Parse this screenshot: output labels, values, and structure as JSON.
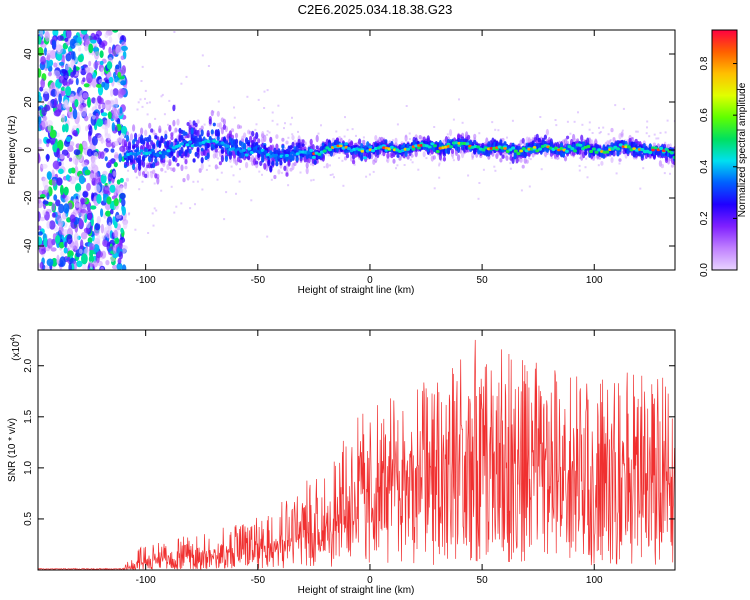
{
  "chart_data": [
    {
      "type": "heatmap",
      "title": "C2E6.2025.034.18.38.G23",
      "xlabel": "Height of straight line (km)",
      "ylabel": "Frequency (Hz)",
      "xlim": [
        -148,
        136
      ],
      "ylim": [
        -50,
        50
      ],
      "xticks": [
        -100,
        -50,
        0,
        50,
        100
      ],
      "yticks": [
        -40,
        -20,
        0,
        20,
        40
      ],
      "grid": false,
      "colorbar": {
        "label": "Normalized spectral amplitude",
        "range": [
          0.0,
          0.93
        ],
        "ticks": [
          0.0,
          0.2,
          0.4,
          0.6,
          0.8
        ],
        "colormap": [
          "#e8d4ff",
          "#c080ff",
          "#8020ff",
          "#2000ff",
          "#0060ff",
          "#00e0f0",
          "#00e060",
          "#60ff00",
          "#e0ff00",
          "#ffc000",
          "#ff6000",
          "#ff0040"
        ]
      },
      "noise_region_x": [
        -148,
        -109
      ],
      "signal_band": {
        "center_freq": [
          {
            "x": -108,
            "f": -2
          },
          {
            "x": -90,
            "f": 0
          },
          {
            "x": -80,
            "f": 3
          },
          {
            "x": -70,
            "f": 3
          },
          {
            "x": -60,
            "f": 1
          },
          {
            "x": -45,
            "f": -2
          },
          {
            "x": -35,
            "f": -2
          },
          {
            "x": -25,
            "f": -1
          },
          {
            "x": -15,
            "f": 1
          },
          {
            "x": 0,
            "f": 0
          },
          {
            "x": 20,
            "f": 1
          },
          {
            "x": 40,
            "f": 2
          },
          {
            "x": 60,
            "f": 0
          },
          {
            "x": 80,
            "f": 1
          },
          {
            "x": 100,
            "f": 0
          },
          {
            "x": 120,
            "f": 1
          },
          {
            "x": 136,
            "f": -2
          }
        ],
        "half_width_hz": [
          {
            "x": -108,
            "w": 11
          },
          {
            "x": -80,
            "w": 12
          },
          {
            "x": -60,
            "w": 9
          },
          {
            "x": -40,
            "w": 7
          },
          {
            "x": -20,
            "w": 5
          },
          {
            "x": 0,
            "w": 4
          },
          {
            "x": 50,
            "w": 4
          },
          {
            "x": 100,
            "w": 4
          },
          {
            "x": 136,
            "w": 4
          }
        ]
      }
    },
    {
      "type": "line",
      "xlabel": "Height of straight line (km)",
      "ylabel": "SNR (10 * v/v)",
      "y_multiplier": "(x10",
      "y_multiplier_exp": "4",
      "multiplier_close": ")",
      "xlim": [
        -148,
        136
      ],
      "ylim": [
        0,
        2.35
      ],
      "xticks": [
        -100,
        -50,
        0,
        50,
        100
      ],
      "yticks": [
        0.5,
        1.0,
        1.5,
        2.0
      ],
      "ytick_labels": [
        "0.5",
        "1.0",
        "1.5",
        "2.0"
      ],
      "grid": false,
      "series": [
        {
          "color": "#f03030",
          "envelope": [
            {
              "x": -148,
              "mean": 0.01,
              "max": 0.02
            },
            {
              "x": -110,
              "mean": 0.01,
              "max": 0.03
            },
            {
              "x": -103,
              "mean": 0.07,
              "max": 0.22
            },
            {
              "x": -90,
              "mean": 0.12,
              "max": 0.3
            },
            {
              "x": -75,
              "mean": 0.14,
              "max": 0.36
            },
            {
              "x": -60,
              "mean": 0.18,
              "max": 0.45
            },
            {
              "x": -50,
              "mean": 0.23,
              "max": 0.6
            },
            {
              "x": -40,
              "mean": 0.3,
              "max": 0.75
            },
            {
              "x": -30,
              "mean": 0.36,
              "max": 0.9
            },
            {
              "x": -22,
              "mean": 0.36,
              "max": 0.9
            },
            {
              "x": -15,
              "mean": 0.52,
              "max": 1.2
            },
            {
              "x": -5,
              "mean": 0.72,
              "max": 1.55
            },
            {
              "x": 5,
              "mean": 0.82,
              "max": 1.65
            },
            {
              "x": 20,
              "mean": 0.95,
              "max": 1.8
            },
            {
              "x": 35,
              "mean": 1.05,
              "max": 2.2
            },
            {
              "x": 50,
              "mean": 1.05,
              "max": 2.3
            },
            {
              "x": 65,
              "mean": 1.0,
              "max": 2.1
            },
            {
              "x": 80,
              "mean": 1.0,
              "max": 2.0
            },
            {
              "x": 100,
              "mean": 0.95,
              "max": 1.9
            },
            {
              "x": 120,
              "mean": 0.9,
              "max": 1.95
            },
            {
              "x": 136,
              "mean": 0.85,
              "max": 1.85
            }
          ]
        }
      ]
    }
  ]
}
